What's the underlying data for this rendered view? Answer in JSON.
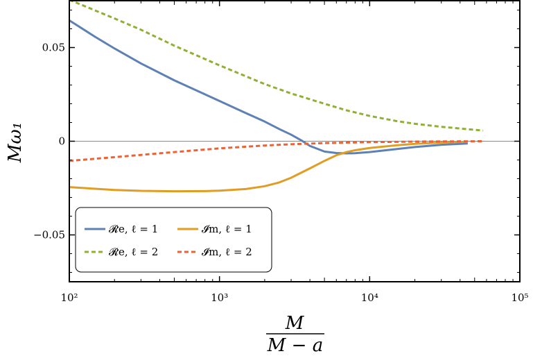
{
  "chart_data": {
    "type": "line",
    "xscale": "log",
    "xlim": [
      100,
      100000
    ],
    "ylim": [
      -0.075,
      0.075
    ],
    "xticks": [
      {
        "value": 100,
        "label": "10²"
      },
      {
        "value": 1000,
        "label": "10³"
      },
      {
        "value": 10000,
        "label": "10⁴"
      },
      {
        "value": 100000,
        "label": "10⁵"
      }
    ],
    "yticks": [
      {
        "value": 0.05,
        "label": "0.05"
      },
      {
        "value": 0,
        "label": "0"
      },
      {
        "value": -0.05,
        "label": "−0.05"
      }
    ],
    "xlabel_num": "M",
    "xlabel_den": "M − a",
    "ylabel": "Mω₁",
    "legend_position": "bottom-left",
    "zero_line": true,
    "series": [
      {
        "name": "𝓡e, ℓ = 1",
        "color": "#5e81b5",
        "dash": "solid",
        "x": [
          100,
          150,
          200,
          300,
          500,
          1000,
          1500,
          2000,
          2500,
          3000,
          3500,
          4000,
          5000,
          6000,
          7000,
          8000,
          10000,
          15000,
          20000,
          30000,
          45000
        ],
        "y": [
          0.0645,
          0.0555,
          0.0495,
          0.0415,
          0.0325,
          0.0215,
          0.015,
          0.0105,
          0.0065,
          0.0035,
          0.0005,
          -0.0025,
          -0.0055,
          -0.0063,
          -0.0065,
          -0.0064,
          -0.0058,
          -0.0042,
          -0.0031,
          -0.0019,
          -0.0012
        ]
      },
      {
        "name": "𝓘m, ℓ = 1",
        "color": "#e19c24",
        "dash": "solid",
        "x": [
          100,
          200,
          300,
          500,
          800,
          1000,
          1500,
          2000,
          2500,
          3000,
          4000,
          5000,
          6000,
          7000,
          8000,
          10000,
          15000,
          20000,
          30000,
          45000
        ],
        "y": [
          -0.0245,
          -0.026,
          -0.0265,
          -0.0267,
          -0.0266,
          -0.0264,
          -0.0255,
          -0.024,
          -0.022,
          -0.0195,
          -0.0145,
          -0.0105,
          -0.0075,
          -0.0058,
          -0.0048,
          -0.0036,
          -0.0022,
          -0.0014,
          -0.0007,
          -0.0003
        ]
      },
      {
        "name": "𝓡e, ℓ = 2",
        "color": "#8fb032",
        "dash": "dashed",
        "x": [
          100,
          200,
          300,
          500,
          1000,
          2000,
          3000,
          5000,
          7000,
          10000,
          15000,
          20000,
          30000,
          45000,
          57000
        ],
        "y": [
          0.0755,
          0.0655,
          0.0595,
          0.051,
          0.0405,
          0.0305,
          0.0255,
          0.02,
          0.0165,
          0.0135,
          0.0108,
          0.0093,
          0.0077,
          0.0064,
          0.0057
        ]
      },
      {
        "name": "𝓘m, ℓ = 2",
        "color": "#eb6235",
        "dash": "dashed",
        "x": [
          100,
          200,
          300,
          500,
          1000,
          2000,
          3000,
          5000,
          10000,
          20000,
          30000,
          45000,
          57000
        ],
        "y": [
          -0.0105,
          -0.0085,
          -0.0073,
          -0.0058,
          -0.0038,
          -0.0023,
          -0.0016,
          -0.001,
          -0.0005,
          -0.0002,
          -0.0001,
          -5e-05,
          0
        ]
      }
    ]
  }
}
